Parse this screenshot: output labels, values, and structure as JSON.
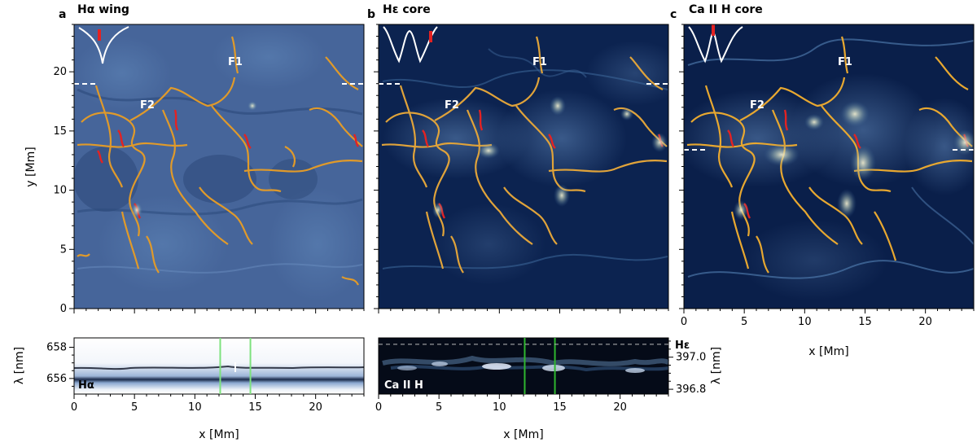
{
  "panels": [
    {
      "letter": "a",
      "title": "Hα wing"
    },
    {
      "letter": "b",
      "title": "Hε core"
    },
    {
      "letter": "c",
      "title": "Ca II H core"
    }
  ],
  "features": {
    "f1": "F1",
    "f2": "F2"
  },
  "axes": {
    "x_label": "x [Mm]",
    "y_label": "y [Mm]",
    "lambda_label": "λ [nm]"
  },
  "spectra": {
    "left_line": "Hα",
    "right_top_line": "Hε",
    "right_bottom_line": "Ca II H"
  },
  "chart_data": [
    {
      "type": "heatmap",
      "title": "Hα wing",
      "xlabel": "",
      "ylabel": "y [Mm]",
      "xlim": [
        0,
        24
      ],
      "ylim": [
        0,
        24
      ],
      "xticks": [
        "0",
        "5",
        "10",
        "15",
        "20"
      ],
      "yticks": [
        "0",
        "5",
        "10",
        "15",
        "20"
      ]
    },
    {
      "type": "heatmap",
      "title": "Hε core",
      "xlim": [
        0,
        24
      ],
      "ylim": [
        0,
        24
      ]
    },
    {
      "type": "heatmap",
      "title": "Ca II H core",
      "xlabel": "x [Mm]",
      "xlim": [
        0,
        24
      ],
      "ylim": [
        0,
        24
      ],
      "xticks": [
        "0",
        "5",
        "10",
        "15",
        "20"
      ]
    },
    {
      "type": "heatmap",
      "xlabel": "x [Mm]",
      "ylabel": "λ [nm]",
      "xlim": [
        0,
        24
      ],
      "ylim": [
        655,
        658.6
      ],
      "xticks": [
        "0",
        "5",
        "10",
        "15",
        "20"
      ],
      "yticks": [
        "658",
        "656"
      ],
      "markers_x": [
        12.1,
        14.6
      ]
    },
    {
      "type": "heatmap",
      "xlabel": "x [Mm]",
      "ylabel": "λ [nm]",
      "xlim": [
        0,
        24
      ],
      "ylim": [
        396.77,
        397.12
      ],
      "xticks": [
        "0",
        "5",
        "10",
        "15",
        "20"
      ],
      "yticks": [
        "397.0",
        "396.8"
      ],
      "markers_x": [
        12.1,
        14.6
      ],
      "dashed_y": 397.08
    }
  ]
}
